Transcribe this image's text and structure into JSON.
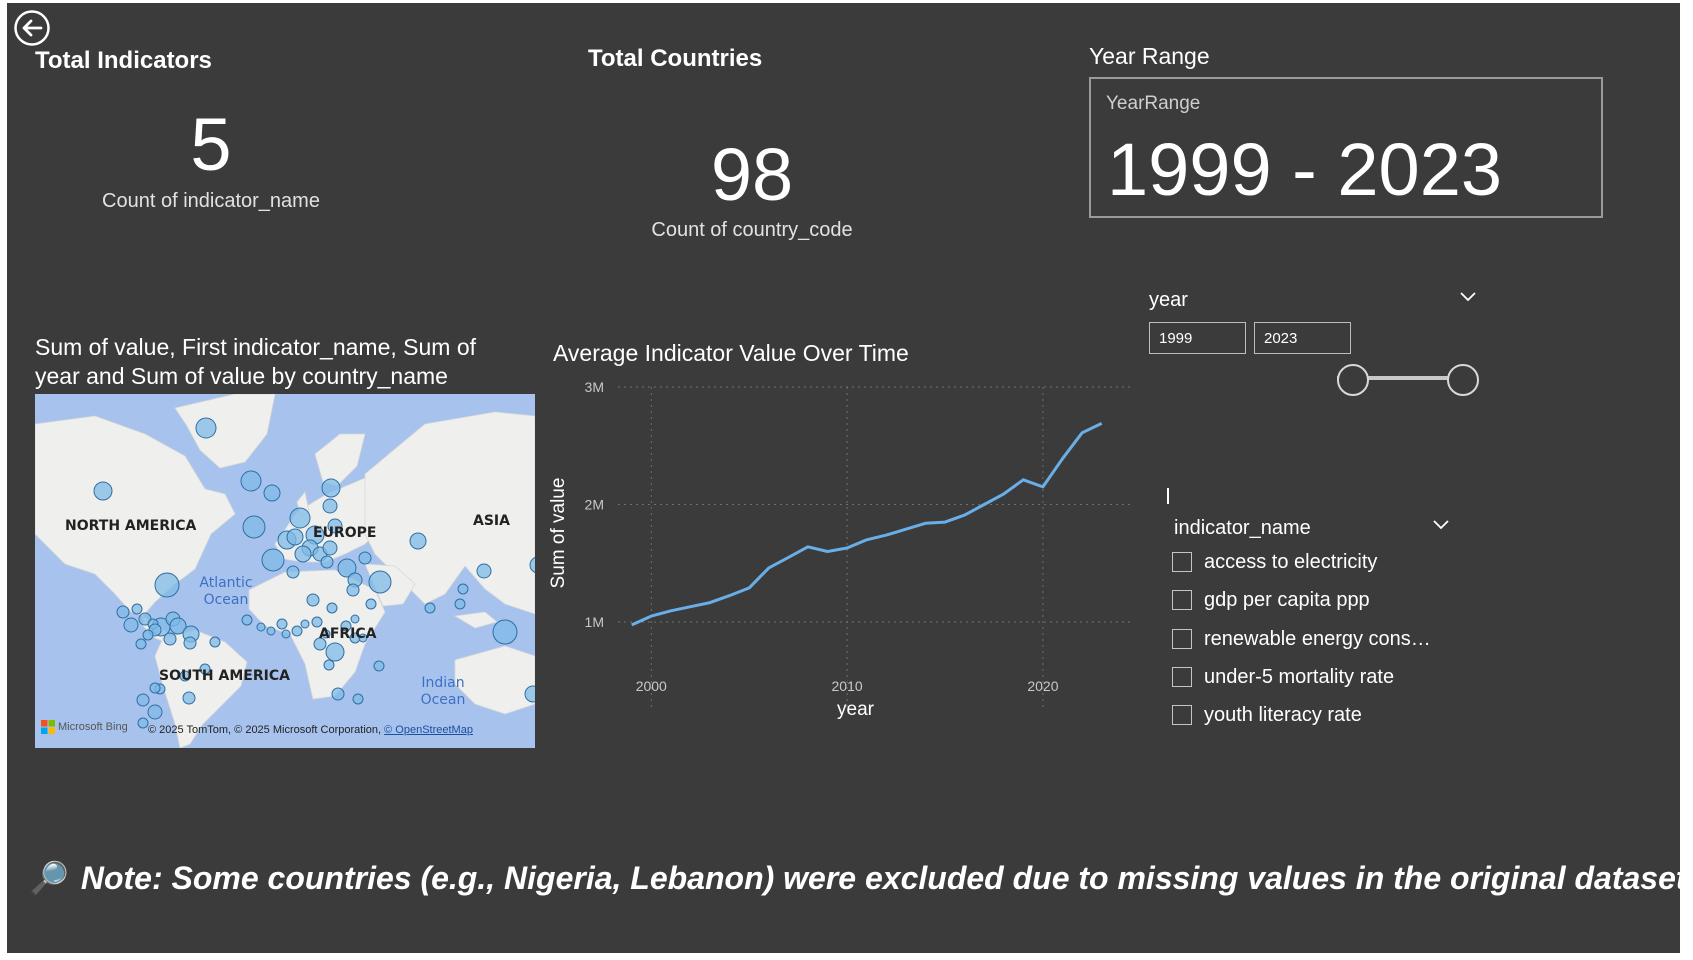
{
  "kpi_indicators": {
    "title": "Total Indicators",
    "value": "5",
    "subtitle": "Count of indicator_name"
  },
  "kpi_countries": {
    "title": "Total Countries",
    "value": "98",
    "subtitle": "Count of country_code"
  },
  "year_range": {
    "title": "Year Range",
    "card_label": "YearRange",
    "value": "1999 - 2023"
  },
  "map": {
    "title_line1": "Sum of value, First indicator_name, Sum of",
    "title_line2": "year and Sum of value by country_name",
    "labels": {
      "north_america": "NORTH AMERICA",
      "europe": "EUROPE",
      "asia": "ASIA",
      "africa": "AFRICA",
      "south_america": "SOUTH AMERICA",
      "atlantic_1": "Atlantic",
      "atlantic_2": "Ocean",
      "indian_1": "Indian",
      "indian_2": "Ocean"
    },
    "brand": "Microsoft Bing",
    "attribution": "© 2025 TomTom, © 2025 Microsoft Corporation,",
    "attribution_link": "© OpenStreetMap"
  },
  "chart_data": {
    "type": "line",
    "title": "Average Indicator Value Over Time",
    "xlabel": "year",
    "ylabel": "Sum of value",
    "x": [
      1999,
      2000,
      2001,
      2002,
      2003,
      2004,
      2005,
      2006,
      2007,
      2008,
      2009,
      2010,
      2011,
      2012,
      2013,
      2014,
      2015,
      2016,
      2017,
      2018,
      2019,
      2020,
      2021,
      2022,
      2023
    ],
    "series": [
      {
        "values": [
          975000,
          1050000,
          1095000,
          1130000,
          1165000,
          1225000,
          1290000,
          1460000,
          1550000,
          1640000,
          1600000,
          1630000,
          1700000,
          1740000,
          1790000,
          1840000,
          1850000,
          1910000,
          2000000,
          2090000,
          2210000,
          2150000,
          2390000,
          2610000,
          2690000
        ]
      }
    ],
    "xlim": [
      1998.3,
      2024.6
    ],
    "ylim": [
      600000,
      3000000
    ],
    "xticks": [
      2000,
      2010,
      2020
    ],
    "yticks": [
      1000000,
      2000000,
      3000000
    ],
    "ytick_labels": [
      "1M",
      "2M",
      "3M"
    ],
    "grid": true,
    "line_color": "#6aaee8"
  },
  "year_slicer": {
    "label": "year",
    "start": "1999",
    "end": "2023",
    "min": 1999,
    "max": 2023,
    "from": 1999,
    "to": 2023
  },
  "indicator_slicer": {
    "label": "indicator_name",
    "items": [
      "access to electricity",
      "gdp per capita ppp",
      "renewable energy cons…",
      "under-5 mortality rate",
      "youth literacy rate"
    ]
  },
  "note": {
    "emoji": "🔎",
    "text": "Note: Some countries (e.g., Nigeria, Lebanon) were excluded due to missing values in the original dataset."
  },
  "colors": {
    "background": "#3b3b3b",
    "bubble": "#7fb9e6",
    "bubble_stroke": "#2f6fa3",
    "land": "#efefee",
    "water": "#a7c3ed"
  }
}
